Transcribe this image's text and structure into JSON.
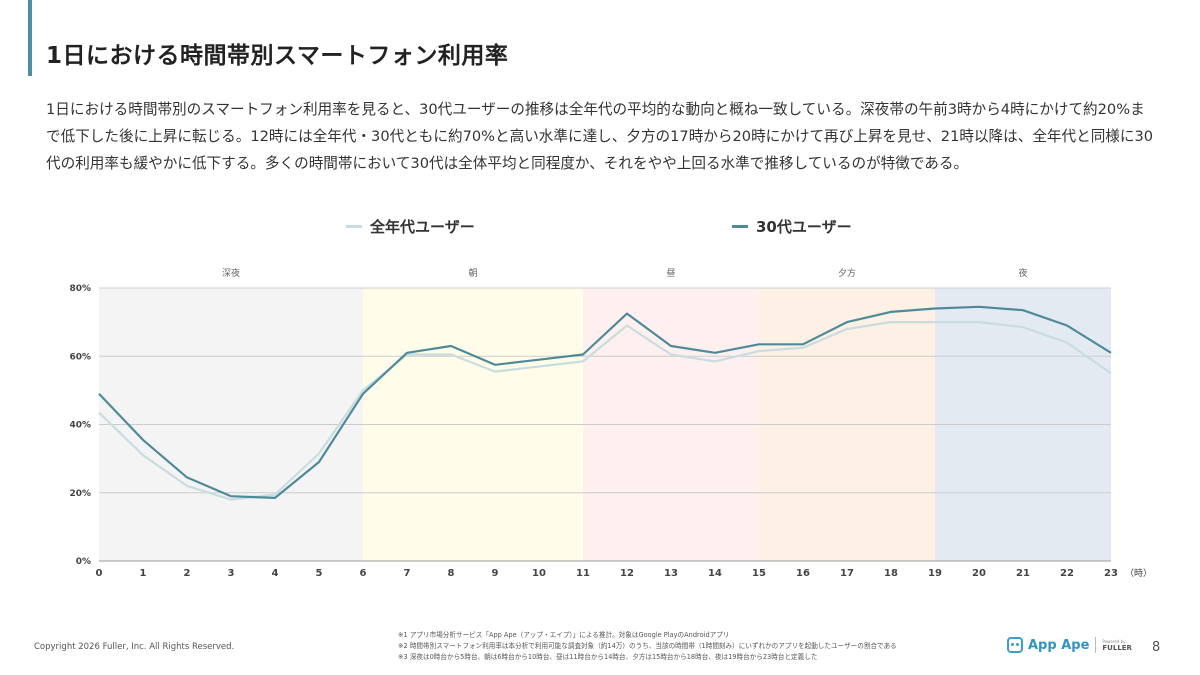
{
  "title": "1日における時間帯別スマートフォン利用率",
  "description": "1日における時間帯別のスマートフォン利用率を見ると、30代ユーザーの推移は全年代の平均的な動向と概ね一致している。深夜帯の午前3時から4時にかけて約20%まで低下した後に上昇に転じる。12時には全年代・30代ともに約70%と高い水準に達し、夕方の17時から20時にかけて再び上昇を見せ、21時以降は、全年代と同様に30代の利用率も緩やかに低下する。多くの時間帯において30代は全体平均と同程度か、それをやや上回る水準で推移しているのが特徴である。",
  "chart_data": {
    "type": "line",
    "x": [
      0,
      1,
      2,
      3,
      4,
      5,
      6,
      7,
      8,
      9,
      10,
      11,
      12,
      13,
      14,
      15,
      16,
      17,
      18,
      19,
      20,
      21,
      22,
      23
    ],
    "x_unit": "（時）",
    "ylim": [
      0,
      80
    ],
    "y_ticks": [
      "0%",
      "20%",
      "40%",
      "60%",
      "80%"
    ],
    "grid": true,
    "legend_position": "top-center",
    "bands": [
      {
        "label": "深夜",
        "from": 0,
        "to": 6,
        "color": "#f4f4f4"
      },
      {
        "label": "朝",
        "from": 6,
        "to": 11,
        "color": "#fffdea"
      },
      {
        "label": "昼",
        "from": 11,
        "to": 15,
        "color": "#fdf0ef"
      },
      {
        "label": "夕方",
        "from": 15,
        "to": 19,
        "color": "#fdf0e4"
      },
      {
        "label": "夜",
        "from": 19,
        "to": 23,
        "color": "#e4eaf2"
      }
    ],
    "series": [
      {
        "name": "全年代ユーザー",
        "color": "#c9dcdf",
        "values": [
          43.5,
          31,
          22,
          18,
          19.5,
          31.5,
          50,
          60.5,
          60.5,
          55.5,
          57,
          58.5,
          69,
          60.5,
          58.5,
          61.5,
          62.5,
          68,
          70,
          70,
          70,
          68.5,
          64,
          55
        ]
      },
      {
        "name": "30代ユーザー",
        "color": "#4f8a9a",
        "values": [
          49,
          35.5,
          24.5,
          19,
          18.5,
          29,
          49,
          61,
          63,
          57.5,
          59,
          60.5,
          72.5,
          63,
          61,
          63.5,
          63.5,
          70,
          73,
          74,
          74.5,
          73.5,
          69,
          61
        ]
      }
    ]
  },
  "footer": {
    "copyright": "Copyright 2026 Fuller, Inc. All Rights Reserved.",
    "notes": [
      "※1 アプリ市場分析サービス「App Ape（アップ・エイプ）」による推計。対象はGoogle PlayのAndroidアプリ",
      "※2 時間帯別スマートフォン利用率は本分析で利用可能な調査対象（約14万）のうち、当該の時間帯（1時間刻み）にいずれかのアプリを起動したユーザーの割合である",
      "※3 深夜は0時台から5時台、朝は6時台から10時台、昼は11時台から14時台、夕方は15時台から18時台、夜は19時台から23時台と定義した"
    ],
    "logo_text": "App Ape",
    "logo_powered": "Powered by",
    "logo_company": "FULLER",
    "page_number": "8"
  }
}
